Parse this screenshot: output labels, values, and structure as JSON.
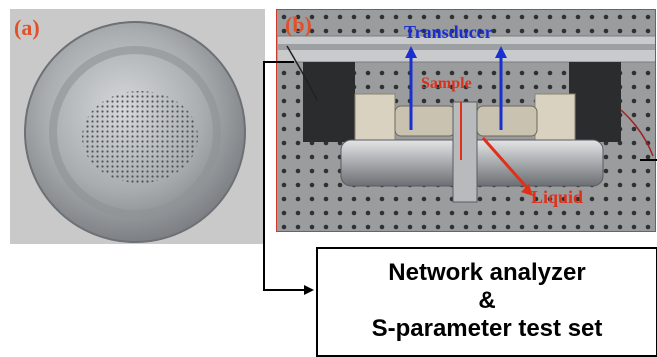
{
  "panel_a": {
    "label": "(a)",
    "label_color": "#e0502a"
  },
  "panel_b": {
    "label": "(b)",
    "label_color": "#e0502a",
    "annotations": {
      "transducer": {
        "text": "Transducer",
        "color": "#1a2fd0"
      },
      "sample": {
        "text": "Sample",
        "color": "#e0301a"
      },
      "liquid": {
        "text": "Liquid",
        "color": "#e0301a"
      }
    }
  },
  "analyzer": {
    "line1": "Network analyzer",
    "line2": "&",
    "line3": "S-parameter test set"
  }
}
